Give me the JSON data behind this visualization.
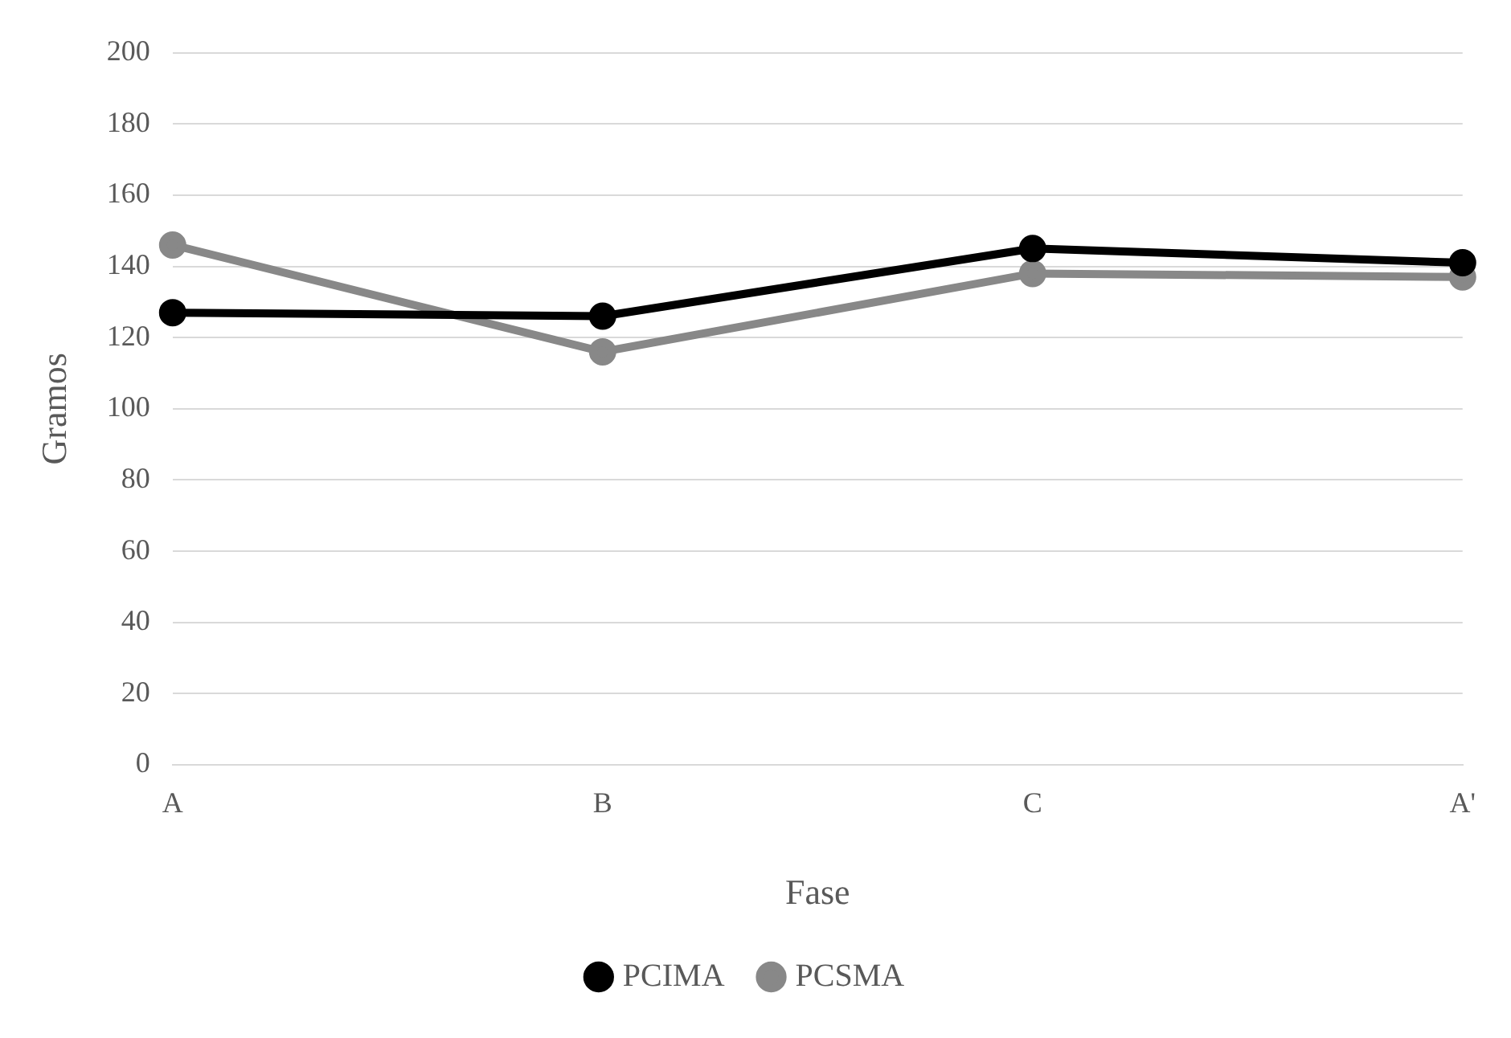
{
  "chart_data": {
    "type": "line",
    "xlabel": "Fase",
    "ylabel": "Gramos",
    "categories": [
      "A",
      "B",
      "C",
      "A'"
    ],
    "series": [
      {
        "name": "PCIMA",
        "color": "#000000",
        "values": [
          127,
          126,
          145,
          141
        ]
      },
      {
        "name": "PCSMA",
        "color": "#888888",
        "values": [
          146,
          116,
          138,
          137
        ]
      }
    ],
    "ylim": [
      0,
      200
    ],
    "yticks": [
      0,
      20,
      40,
      60,
      80,
      100,
      120,
      140,
      160,
      180,
      200
    ],
    "grid": "y",
    "legend": "bottom",
    "marker": "circle",
    "line_style": "solid"
  }
}
